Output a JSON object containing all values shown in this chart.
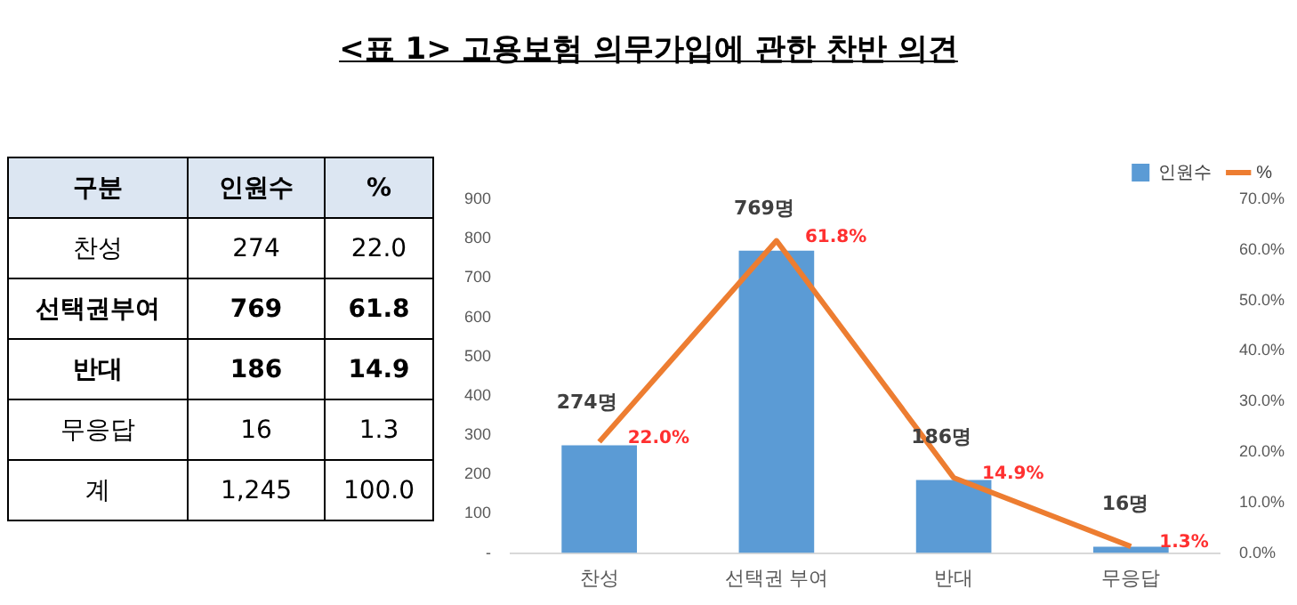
{
  "chart_data": {
    "type": "bar",
    "title": "<표 1> 고용보험 의무가입에 관한 찬반 의견",
    "categories": [
      "찬성",
      "선택권 부여",
      "반대",
      "무응답"
    ],
    "series": [
      {
        "name": "인원수",
        "color": "#5b9bd5",
        "values": [
          274,
          769,
          186,
          16
        ],
        "value_labels": [
          "274명",
          "769명",
          "186명",
          "16명"
        ]
      },
      {
        "name": "%",
        "type": "line",
        "axis": "y2",
        "color": "#ed7d31",
        "values": [
          22.0,
          61.8,
          14.9,
          1.3
        ],
        "value_labels": [
          "22.0%",
          "61.8%",
          "14.9%",
          "1.3%"
        ]
      }
    ],
    "ylim": [
      0,
      900
    ],
    "yticks": [
      {
        "value": 0,
        "label": "-"
      },
      100,
      200,
      300,
      400,
      500,
      600,
      700,
      800,
      900
    ],
    "y2lim": [
      0,
      70
    ],
    "y2ticks": [
      {
        "value": 0,
        "label": "0.0%"
      },
      {
        "value": 10,
        "label": "10.0%"
      },
      {
        "value": 20,
        "label": "20.0%"
      },
      {
        "value": 30,
        "label": "30.0%"
      },
      {
        "value": 40,
        "label": "40.0%"
      },
      {
        "value": 50,
        "label": "50.0%"
      },
      {
        "value": 60,
        "label": "60.0%"
      },
      {
        "value": 70,
        "label": "70.0%"
      }
    ],
    "grid": false,
    "legend": "top right",
    "marker": "none",
    "line_style": "solid",
    "annotations": [
      "구분",
      "인원수",
      "%",
      "찬성",
      "274",
      "22.0",
      "선택권부여",
      "769",
      "61.8",
      "반대",
      "186",
      "14.9",
      "무응답",
      "16",
      "1.3",
      "계",
      "1,245",
      "100.0"
    ]
  }
}
